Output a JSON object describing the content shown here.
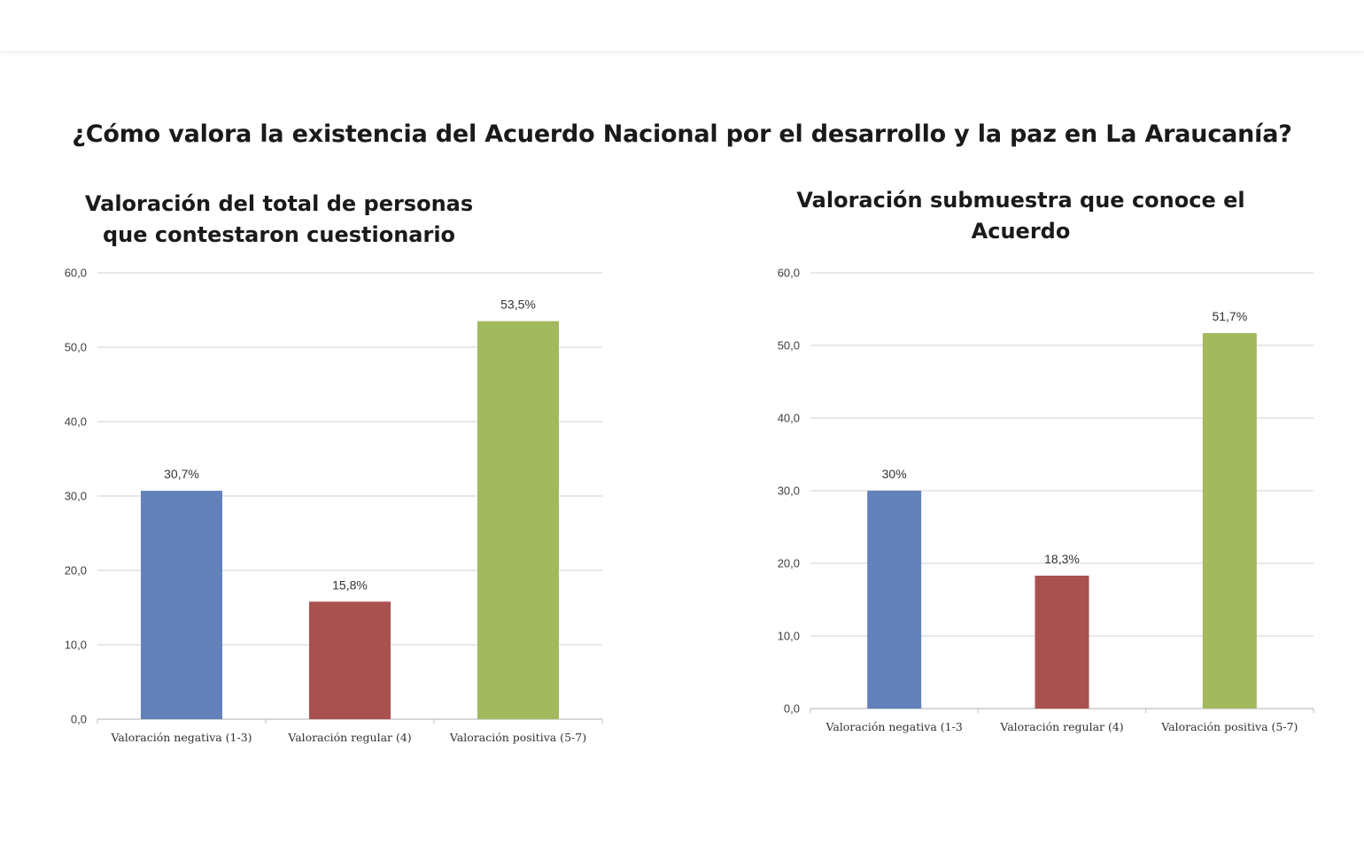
{
  "header": {
    "title": "¿Cómo valora la existencia del Acuerdo Nacional por el desarrollo y la paz en La Araucanía?"
  },
  "chart_data": [
    {
      "type": "bar",
      "title": "Valoración del total de personas\nque contestaron cuestionario",
      "categories": [
        "Valoración negativa (1-3)",
        "Valoración regular (4)",
        "Valoración positiva (5-7)"
      ],
      "values": [
        30.7,
        15.8,
        53.5
      ],
      "data_labels": [
        "30,7%",
        "15,8%",
        "53,5%"
      ],
      "colors": [
        "#6281ba",
        "#a9514e",
        "#a3b95e"
      ],
      "yticks": [
        "0,0",
        "10,0",
        "20,0",
        "30,0",
        "40,0",
        "50,0",
        "60,0"
      ],
      "ylim": [
        0,
        60
      ],
      "grid": true,
      "legend": "none",
      "xlabel": "",
      "ylabel": ""
    },
    {
      "type": "bar",
      "title": "Valoración submuestra que conoce el Acuerdo",
      "categories": [
        "Valoración negativa (1-3",
        "Valoración regular (4)",
        "Valoración positiva (5-7)"
      ],
      "values": [
        30,
        18.3,
        51.7
      ],
      "data_labels": [
        "30%",
        "18,3%",
        "51,7%"
      ],
      "colors": [
        "#6281ba",
        "#a9514e",
        "#a3b95e"
      ],
      "yticks": [
        "0,0",
        "10,0",
        "20,0",
        "30,0",
        "40,0",
        "50,0",
        "60,0"
      ],
      "ylim": [
        0,
        60
      ],
      "grid": true,
      "legend": "none",
      "xlabel": "",
      "ylabel": ""
    }
  ]
}
